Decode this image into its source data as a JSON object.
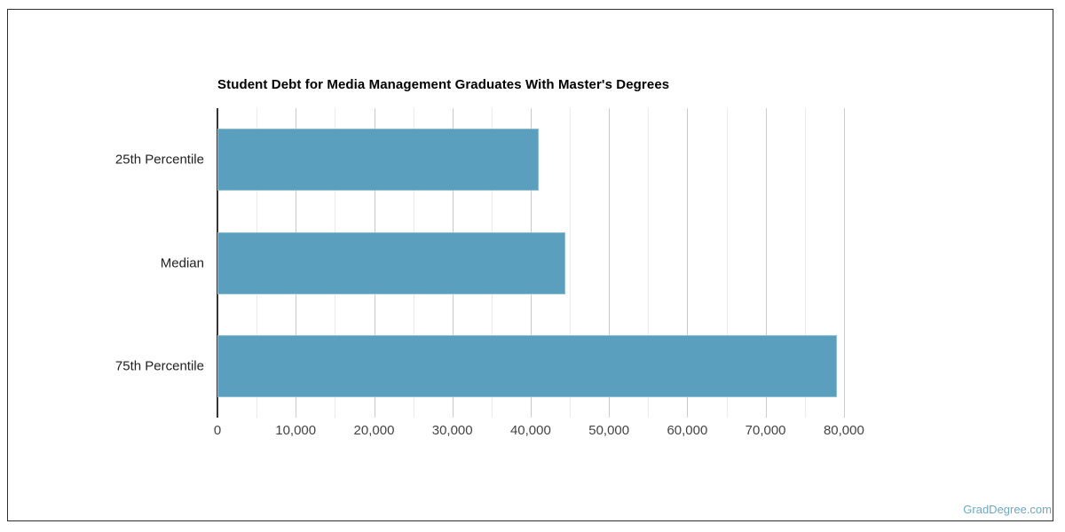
{
  "chart_data": {
    "type": "bar",
    "orientation": "horizontal",
    "title": "Student Debt for Media Management Graduates With Master's Degrees",
    "categories": [
      "25th Percentile",
      "Median",
      "75th Percentile"
    ],
    "values": [
      41000,
      44400,
      79100
    ],
    "xlabel": "",
    "ylabel": "",
    "xlim": [
      0,
      85000
    ],
    "x_ticks": [
      0,
      10000,
      20000,
      30000,
      40000,
      50000,
      60000,
      70000,
      80000
    ],
    "x_tick_labels": [
      "0",
      "10,000",
      "20,000",
      "30,000",
      "40,000",
      "50,000",
      "60,000",
      "70,000",
      "80,000"
    ],
    "minor_gridline_step": 5000,
    "grid": true,
    "legend_position": "none",
    "colors": {
      "bar_fill": "#5aa0be",
      "bar_stroke": "#8fbdd2",
      "major_gridline": "#cccccc",
      "minor_gridline": "#ebebeb",
      "axis_line": "#333333",
      "title_text": "#000000",
      "category_text": "#222222",
      "tick_text": "#444444"
    }
  },
  "watermark": {
    "text": "GradDegree.com",
    "color": "#6ea8c6"
  }
}
